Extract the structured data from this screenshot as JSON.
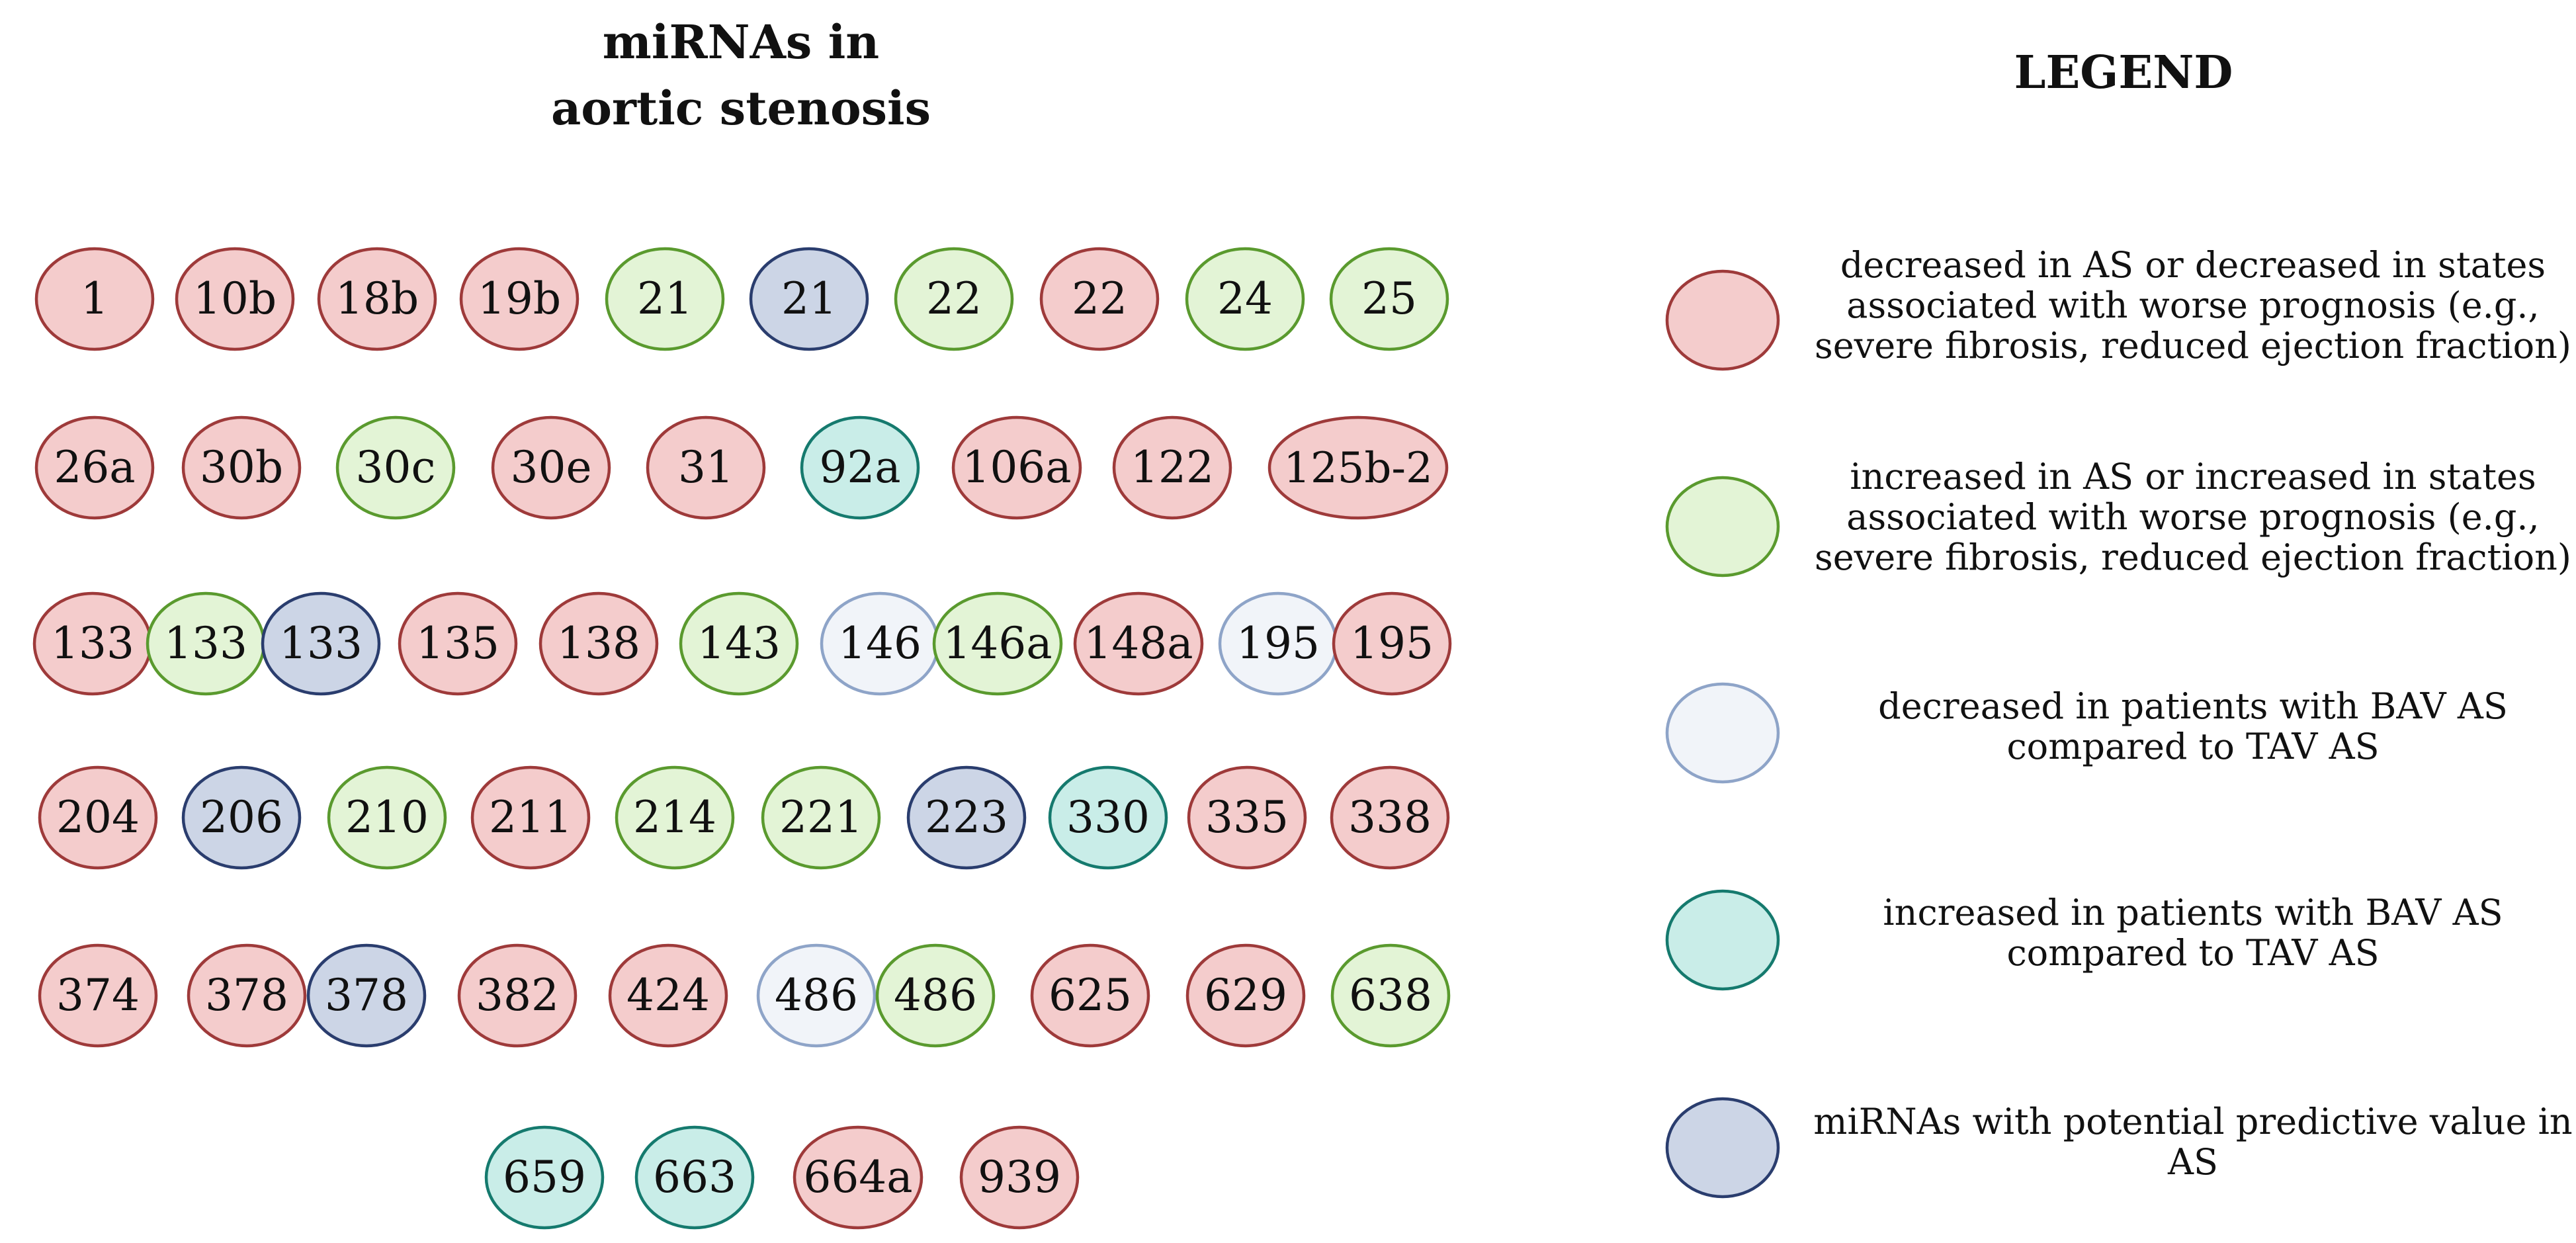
{
  "title_line1": "miRNAs in",
  "title_line2": "aortic stenosis",
  "legend_title": "LEGEND",
  "colors": {
    "red": {
      "fill": "#f4cccc",
      "stroke": "#9e3a3a"
    },
    "green": {
      "fill": "#e3f4d6",
      "stroke": "#5a9a2e"
    },
    "white": {
      "fill": "#f1f4f9",
      "stroke": "#8ea4c8"
    },
    "teal": {
      "fill": "#c9ede8",
      "stroke": "#157a6e"
    },
    "blue": {
      "fill": "#ccd5e6",
      "stroke": "#2a3d6e"
    }
  },
  "legend_items": [
    {
      "category": "red",
      "text": "decreased in AS or decreased in states associated with worse prognosis (e.g., severe fibrosis, reduced ejection fraction)"
    },
    {
      "category": "green",
      "text": "increased in AS or increased in states associated with worse prognosis (e.g., severe fibrosis, reduced ejection fraction)"
    },
    {
      "category": "white",
      "text": "decreased in patients with BAV AS compared to TAV AS"
    },
    {
      "category": "teal",
      "text": "increased in patients with BAV AS compared to TAV AS"
    },
    {
      "category": "blue",
      "text": "miRNAs with potential predictive value in AS"
    }
  ],
  "rows": [
    [
      {
        "label": "1",
        "category": "red"
      },
      {
        "label": "10b",
        "category": "red"
      },
      {
        "label": "18b",
        "category": "red"
      },
      {
        "label": "19b",
        "category": "red"
      },
      {
        "label": "21",
        "category": "green"
      },
      {
        "label": "21",
        "category": "blue"
      },
      {
        "label": "22",
        "category": "green"
      },
      {
        "label": "22",
        "category": "red"
      },
      {
        "label": "24",
        "category": "green"
      },
      {
        "label": "25",
        "category": "green"
      }
    ],
    [
      {
        "label": "26a",
        "category": "red"
      },
      {
        "label": "30b",
        "category": "red"
      },
      {
        "label": "30c",
        "category": "green"
      },
      {
        "label": "30e",
        "category": "red"
      },
      {
        "label": "31",
        "category": "red"
      },
      {
        "label": "92a",
        "category": "teal"
      },
      {
        "label": "106a",
        "category": "red"
      },
      {
        "label": "122",
        "category": "red"
      },
      {
        "label": "125b-2",
        "category": "red"
      }
    ],
    [
      {
        "label": "133",
        "category": "red"
      },
      {
        "label": "133",
        "category": "green"
      },
      {
        "label": "133",
        "category": "blue"
      },
      {
        "label": "135",
        "category": "red"
      },
      {
        "label": "138",
        "category": "red"
      },
      {
        "label": "143",
        "category": "green"
      },
      {
        "label": "146",
        "category": "white"
      },
      {
        "label": "146a",
        "category": "green"
      },
      {
        "label": "148a",
        "category": "red"
      },
      {
        "label": "195",
        "category": "white"
      },
      {
        "label": "195",
        "category": "red"
      }
    ],
    [
      {
        "label": "204",
        "category": "red"
      },
      {
        "label": "206",
        "category": "blue"
      },
      {
        "label": "210",
        "category": "green"
      },
      {
        "label": "211",
        "category": "red"
      },
      {
        "label": "214",
        "category": "green"
      },
      {
        "label": "221",
        "category": "green"
      },
      {
        "label": "223",
        "category": "blue"
      },
      {
        "label": "330",
        "category": "teal"
      },
      {
        "label": "335",
        "category": "red"
      },
      {
        "label": "338",
        "category": "red"
      }
    ],
    [
      {
        "label": "374",
        "category": "red"
      },
      {
        "label": "378",
        "category": "red"
      },
      {
        "label": "378",
        "category": "blue"
      },
      {
        "label": "382",
        "category": "red"
      },
      {
        "label": "424",
        "category": "red"
      },
      {
        "label": "486",
        "category": "white"
      },
      {
        "label": "486",
        "category": "green"
      },
      {
        "label": "625",
        "category": "red"
      },
      {
        "label": "629",
        "category": "red"
      },
      {
        "label": "638",
        "category": "green"
      }
    ],
    [
      {
        "label": "659",
        "category": "teal"
      },
      {
        "label": "663",
        "category": "teal"
      },
      {
        "label": "664a",
        "category": "red"
      },
      {
        "label": "939",
        "category": "red"
      }
    ]
  ]
}
